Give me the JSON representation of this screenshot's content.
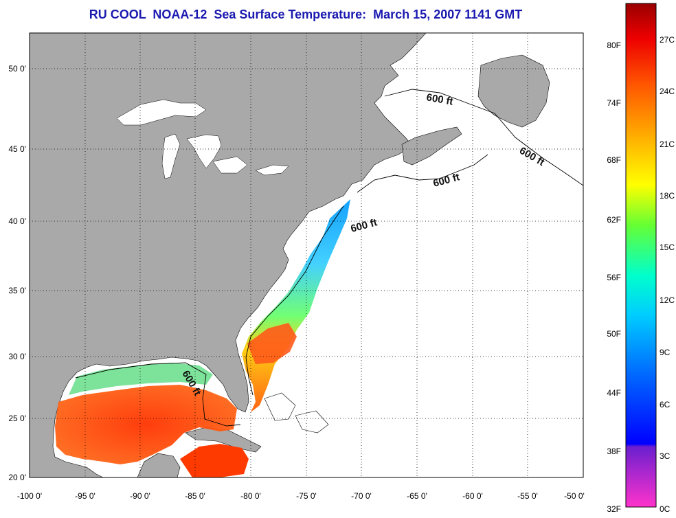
{
  "title": "RU COOL  NOAA-12  Sea Surface Temperature:  March 15, 2007 1141 GMT",
  "lon_labels": [
    "-100 0'",
    "-95 0'",
    "-90 0'",
    "-85 0'",
    "-80 0'",
    "-75 0'",
    "-70 0'",
    "-65 0'",
    "-60 0'",
    "-55 0'",
    "-50 0'"
  ],
  "lat_labels": [
    "50 0'",
    "45 0'",
    "40 0'",
    "35 0'",
    "30 0'",
    "25 0'",
    "20 0'"
  ],
  "contour_labels": [
    "600 ft",
    "600 ft",
    "600 ft",
    "600 ft",
    "600 ft"
  ],
  "colorbar": {
    "fahrenheit": [
      "80F",
      "74F",
      "68F",
      "62F",
      "56F",
      "50F",
      "44F",
      "38F",
      "32F"
    ],
    "celsius": [
      "27C",
      "24C",
      "21C",
      "18C",
      "15C",
      "12C",
      "9C",
      "6C",
      "3C",
      "0C"
    ]
  },
  "colors": {
    "land": "#a9a9a9",
    "ocean": "#ffffff",
    "title": "#1a1ab0"
  }
}
